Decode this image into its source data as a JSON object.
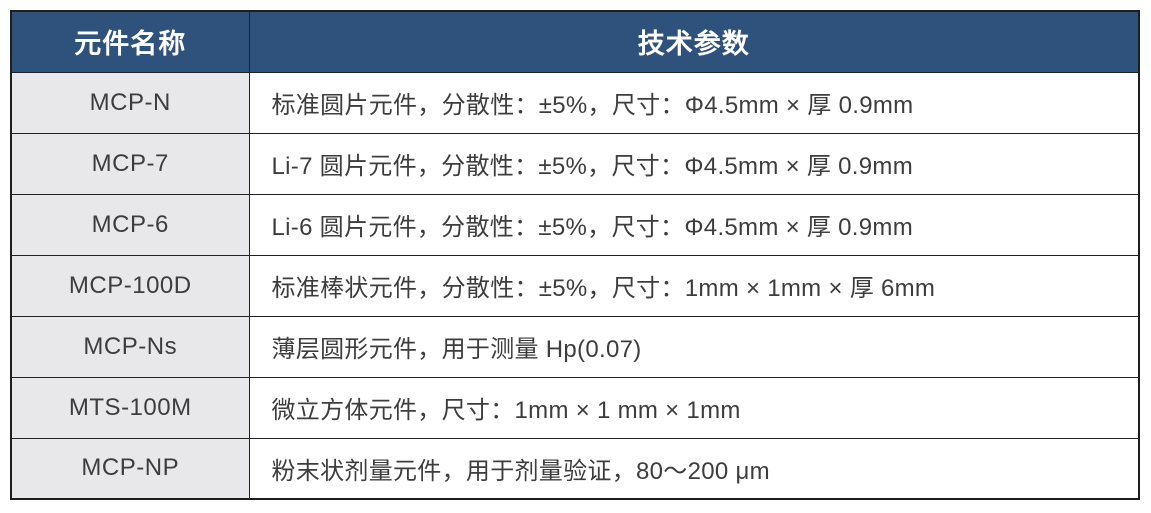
{
  "table": {
    "header": {
      "component_name": "元件名称",
      "tech_params": "技术参数"
    },
    "colors": {
      "header_bg": "#2e527b",
      "header_text": "#ffffff",
      "name_col_bg": "#e8e8ea",
      "params_col_bg": "#ffffff",
      "border": "#222222",
      "body_text": "#3d3d3d"
    },
    "rows": [
      {
        "name": "MCP-N",
        "params": "标准圆片元件，分散性：±5%，尺寸：Φ4.5mm × 厚 0.9mm"
      },
      {
        "name": "MCP-7",
        "params": "Li-7 圆片元件，分散性：±5%，尺寸：Φ4.5mm × 厚 0.9mm"
      },
      {
        "name": "MCP-6",
        "params": "Li-6 圆片元件，分散性：±5%，尺寸：Φ4.5mm × 厚 0.9mm"
      },
      {
        "name": "MCP-100D",
        "params": "标准棒状元件，分散性：±5%，尺寸：1mm × 1mm × 厚 6mm"
      },
      {
        "name": "MCP-Ns",
        "params": "薄层圆形元件，用于测量 Hp(0.07)"
      },
      {
        "name": "MTS-100M",
        "params": "微立方体元件，尺寸：1mm × 1 mm × 1mm"
      },
      {
        "name": "MCP-NP",
        "params": "粉末状剂量元件，用于剂量验证，80～200 μm"
      }
    ]
  }
}
